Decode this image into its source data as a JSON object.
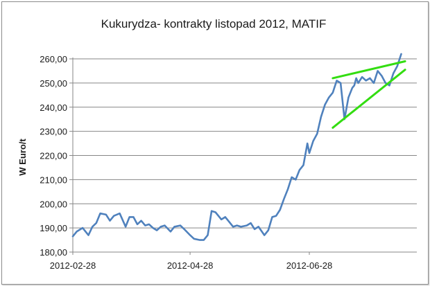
{
  "chart_data": {
    "type": "line",
    "title": "Kukurydza- kontrakty listopad 2012, MATIF",
    "xlabel": "",
    "ylabel": "W Euro/t",
    "ylim": [
      180,
      260
    ],
    "y_ticks": [
      180,
      190,
      200,
      210,
      220,
      230,
      240,
      250,
      260
    ],
    "y_tick_labels": [
      "180,00",
      "190,00",
      "200,00",
      "210,00",
      "220,00",
      "230,00",
      "240,00",
      "250,00",
      "260,00"
    ],
    "x_ticks": [
      "2012-02-28",
      "2012-04-28",
      "2012-06-28"
    ],
    "grid": "horizontal",
    "legend": "none",
    "line_color": "#4f81bd",
    "trendline_color": "#33dd11",
    "series": [
      {
        "x": [
          "2012-02-28",
          "2012-03-01",
          "2012-03-04",
          "2012-03-07",
          "2012-03-09",
          "2012-03-11",
          "2012-03-13",
          "2012-03-16",
          "2012-03-18",
          "2012-03-20",
          "2012-03-23",
          "2012-03-26",
          "2012-03-28",
          "2012-03-30",
          "2012-04-01",
          "2012-04-03",
          "2012-04-05",
          "2012-04-07",
          "2012-04-09",
          "2012-04-11",
          "2012-04-13",
          "2012-04-15",
          "2012-04-18",
          "2012-04-20",
          "2012-04-23",
          "2012-04-25",
          "2012-04-28",
          "2012-04-30",
          "2012-05-03",
          "2012-05-05",
          "2012-05-07",
          "2012-05-09",
          "2012-05-11",
          "2012-05-14",
          "2012-05-16",
          "2012-05-18",
          "2012-05-20",
          "2012-05-22",
          "2012-05-24",
          "2012-05-27",
          "2012-05-29",
          "2012-05-31",
          "2012-06-02",
          "2012-06-05",
          "2012-06-07",
          "2012-06-09",
          "2012-06-11",
          "2012-06-13",
          "2012-06-15",
          "2012-06-17",
          "2012-06-19",
          "2012-06-21",
          "2012-06-23",
          "2012-06-25",
          "2012-06-27",
          "2012-06-28",
          "2012-06-30",
          "2012-07-02",
          "2012-07-04",
          "2012-07-06",
          "2012-07-08",
          "2012-07-10",
          "2012-07-12",
          "2012-07-14",
          "2012-07-16",
          "2012-07-18",
          "2012-07-20",
          "2012-07-21",
          "2012-07-22",
          "2012-07-23",
          "2012-07-25",
          "2012-07-27",
          "2012-07-29",
          "2012-07-31",
          "2012-08-02",
          "2012-08-04",
          "2012-08-06",
          "2012-08-08",
          "2012-08-10",
          "2012-08-12",
          "2012-08-14"
        ],
        "values": [
          186.5,
          188.5,
          190,
          187,
          190.5,
          192,
          196,
          195.5,
          193,
          195,
          196,
          190.5,
          194.5,
          194.5,
          191.5,
          193,
          191,
          191.5,
          190,
          189,
          190.5,
          191,
          188.5,
          190.5,
          191,
          189.5,
          187,
          185.5,
          185,
          185,
          187,
          197,
          196.5,
          193.5,
          194.5,
          192.5,
          190.5,
          191,
          190.5,
          191,
          192,
          189.5,
          190.5,
          187,
          189,
          194.5,
          195,
          197.5,
          202,
          206,
          211,
          210,
          214,
          216,
          225,
          221,
          226,
          229,
          236,
          241,
          244,
          246,
          251,
          250,
          235,
          244,
          248,
          249,
          252,
          250,
          252.5,
          251,
          252,
          250,
          255,
          253,
          250,
          249,
          254,
          257,
          262
        ]
      }
    ],
    "trendlines": [
      {
        "from": {
          "x": "2012-07-10",
          "y": 252
        },
        "to": {
          "x": "2012-08-16",
          "y": 259
        }
      },
      {
        "from": {
          "x": "2012-07-10",
          "y": 231.5
        },
        "to": {
          "x": "2012-08-16",
          "y": 255.5
        }
      }
    ]
  }
}
